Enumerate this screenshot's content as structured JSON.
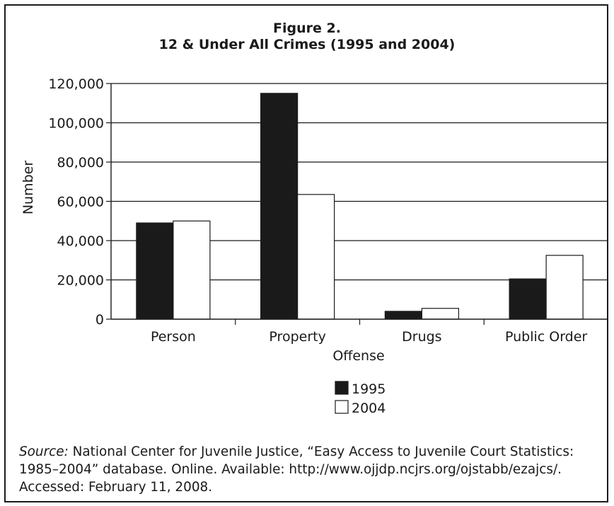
{
  "chart_data": {
    "type": "bar",
    "title": "Figure 2.",
    "subtitle": "12 & Under All Crimes (1995 and 2004)",
    "xlabel": "Offense",
    "ylabel": "Number",
    "categories": [
      "Person",
      "Property",
      "Drugs",
      "Public Order"
    ],
    "series": [
      {
        "name": "1995",
        "values": [
          49000,
          115000,
          4000,
          20500
        ]
      },
      {
        "name": "2004",
        "values": [
          50000,
          63500,
          5500,
          32500
        ]
      }
    ],
    "ylim": [
      0,
      120000
    ],
    "yticks": [
      0,
      20000,
      40000,
      60000,
      80000,
      100000,
      120000
    ],
    "ytick_labels": [
      "0",
      "20,000",
      "40,000",
      "60,000",
      "80,000",
      "100,000",
      "120,000"
    ],
    "grid": true,
    "legend_position": "bottom-center",
    "colors": {
      "1995": "#1a1a1a",
      "2004": "#ffffff",
      "axis": "#1a1a1a",
      "grid": "#1a1a1a"
    }
  },
  "source": {
    "label": "Source:",
    "text": " National Center for Juvenile Justice, “Easy Access to Juvenile Court Statistics: 1985–2004” database. Online. Available: http://www.ojjdp.ncjrs.org/ojstabb/ezajcs/. Accessed: February 11, 2008."
  }
}
